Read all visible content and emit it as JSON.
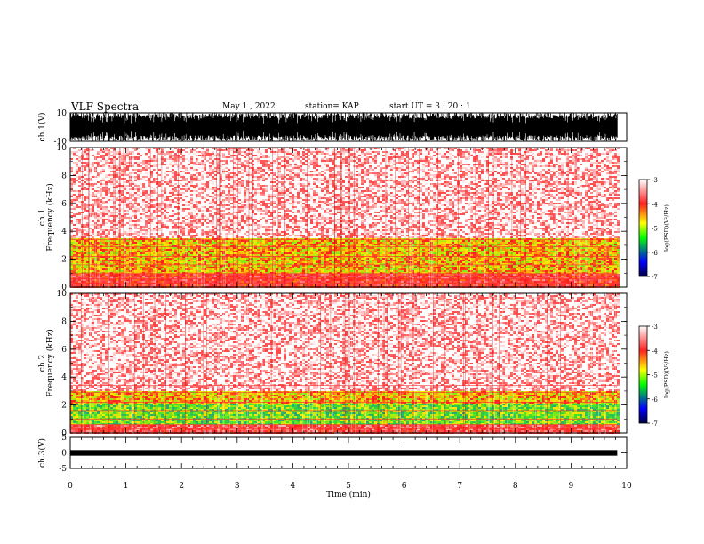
{
  "header": {
    "title": "VLF Spectra",
    "date": "May 1 , 2022",
    "station": "station= KAP",
    "start": "start UT = 3 : 20 : 1"
  },
  "chart_data": [
    {
      "type": "line",
      "name": "ch1-waveform",
      "ylabel": "ch.1(V)",
      "ylim": [
        -10,
        10
      ],
      "y_ticks": [
        "10",
        "-10"
      ],
      "xlim": [
        0,
        10
      ],
      "data_end": 9.83
    },
    {
      "type": "heatmap",
      "name": "ch1-spectrogram",
      "ylabel": "ch.1 Frequency (kHz)",
      "ylim": [
        0,
        10
      ],
      "y_ticks": [
        "0",
        "2",
        "4",
        "6",
        "8",
        "10"
      ],
      "xlim": [
        0,
        10
      ],
      "data_end": 9.83,
      "bands": [
        {
          "from": 0,
          "to": 1.0,
          "level": -3.7
        },
        {
          "from": 1.0,
          "to": 3.6,
          "level": -4.3
        },
        {
          "from": 3.6,
          "to": 10,
          "level": -3.1
        }
      ]
    },
    {
      "type": "heatmap",
      "name": "ch2-spectrogram",
      "ylabel": "ch.2 Frequency (kHz)",
      "ylim": [
        0,
        10
      ],
      "y_ticks": [
        "0",
        "2",
        "4",
        "6",
        "8",
        "10"
      ],
      "xlim": [
        0,
        10
      ],
      "data_end": 9.83,
      "bands": [
        {
          "from": 0,
          "to": 0.6,
          "level": -3.6
        },
        {
          "from": 0.6,
          "to": 2.2,
          "level": -4.8
        },
        {
          "from": 2.2,
          "to": 3.0,
          "level": -4.3
        },
        {
          "from": 3.0,
          "to": 10,
          "level": -3.1
        }
      ]
    },
    {
      "type": "line",
      "name": "ch3-waveform",
      "ylabel": "ch.3(V)",
      "ylim": [
        -5,
        5
      ],
      "y_ticks": [
        "5",
        "0",
        "-5"
      ],
      "xlim": [
        0,
        10
      ],
      "data_end": 9.83
    }
  ],
  "colorbar": {
    "label": "log(PSD)(V²/Hz)",
    "range": [
      -7,
      -3
    ],
    "ticks": [
      "-3",
      "-4",
      "-5",
      "-6",
      "-7"
    ],
    "colors": [
      "#ffffff",
      "#ff2020",
      "#ffff00",
      "#00ff00",
      "#0000ff",
      "#000040"
    ]
  },
  "x_axis": {
    "label": "Time (min)",
    "ticks": [
      "0",
      "1",
      "2",
      "3",
      "4",
      "5",
      "6",
      "7",
      "8",
      "9",
      "10"
    ]
  }
}
